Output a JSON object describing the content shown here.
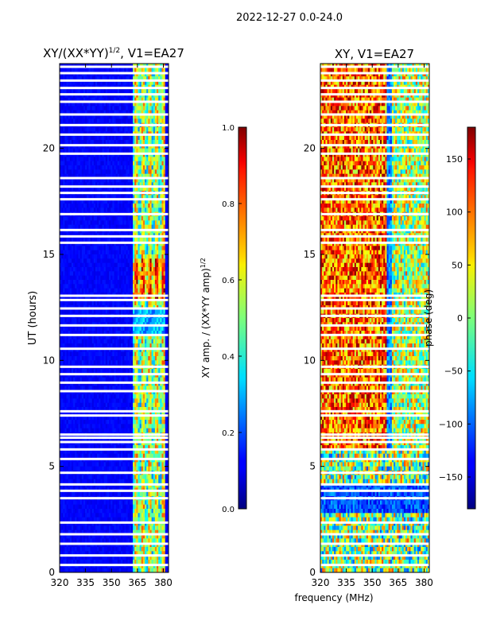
{
  "figure": {
    "suptitle": "2022-12-27 0.0-24.0"
  },
  "chart_data": [
    {
      "type": "heatmap",
      "title": "XY/(XX*YY)",
      "title_sup": "1/2",
      "title_suffix": ", V1=EA27",
      "xlabel": "",
      "ylabel": "UT (hours)",
      "xlim": [
        320,
        383
      ],
      "ylim": [
        0,
        24
      ],
      "xticks": [
        320,
        335,
        350,
        365,
        380
      ],
      "yticks": [
        0,
        5,
        10,
        15,
        20
      ],
      "colorbar": {
        "label": "XY amp. / (XX*YY amp)",
        "label_sup": "1/2",
        "range": [
          0.0,
          1.0
        ],
        "ticks": [
          "0.0",
          "0.2",
          "0.4",
          "0.6",
          "0.8",
          "1.0"
        ],
        "colormap": "jet"
      }
    },
    {
      "type": "heatmap",
      "title": "XY, V1=EA27",
      "xlabel": "frequency (MHz)",
      "ylabel": "",
      "xlim": [
        320,
        383
      ],
      "ylim": [
        0,
        24
      ],
      "xticks": [
        320,
        335,
        350,
        365,
        380
      ],
      "yticks": [
        0,
        5,
        10,
        15,
        20
      ],
      "colorbar": {
        "label": "phase (deg)",
        "range": [
          -180,
          180
        ],
        "ticks": [
          "150",
          "100",
          "50",
          "0",
          "−50",
          "−100",
          "−150"
        ],
        "tick_values": [
          150,
          100,
          50,
          0,
          -50,
          -100,
          -150
        ],
        "colormap": "jet"
      }
    }
  ],
  "blank_rows_hours": [
    0.35,
    0.8,
    1.35,
    1.8,
    2.35,
    3.5,
    3.85,
    4.15,
    4.7,
    5.35,
    5.8,
    6.15,
    6.35,
    6.5,
    7.4,
    7.6,
    8.55,
    8.95,
    9.35,
    9.7,
    10.55,
    11.2,
    11.65,
    12.1,
    12.45,
    12.85,
    13.05,
    15.55,
    15.85,
    16.15,
    16.9,
    17.6,
    17.9,
    18.2,
    18.6,
    19.75,
    20.15,
    20.65,
    21.1,
    21.6,
    22.2,
    22.55,
    22.85,
    23.2,
    23.55,
    23.85
  ]
}
